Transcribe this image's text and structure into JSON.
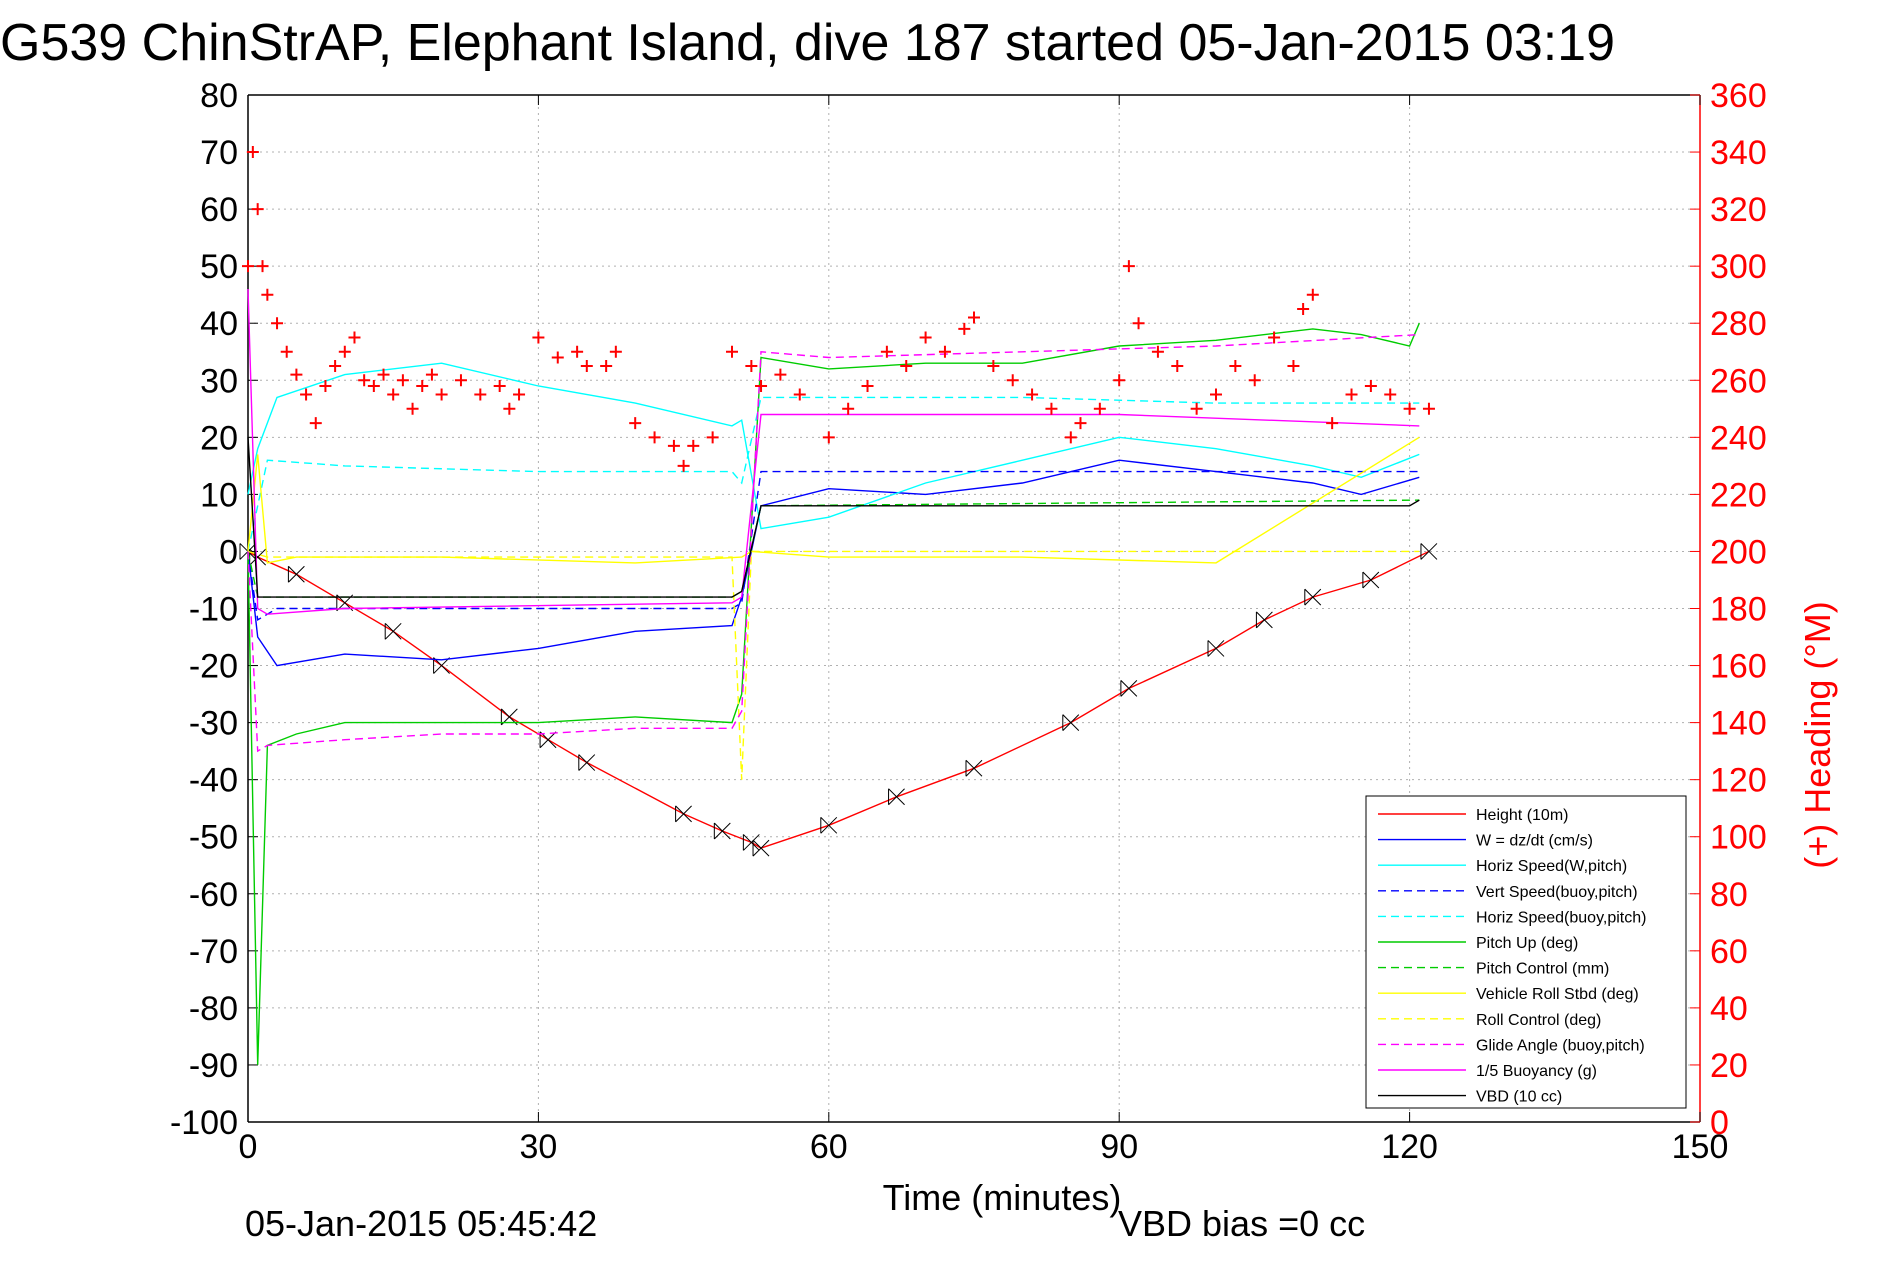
{
  "chart_data": {
    "type": "line",
    "title": "G539 ChinStrAP, Elephant Island, dive 187 started 05-Jan-2015 03:19",
    "xlabel": "Time (minutes)",
    "ylabel": "",
    "y2label": "(+) Heading (°M)",
    "xlim": [
      0,
      150
    ],
    "ylim": [
      -100,
      80
    ],
    "y2lim": [
      0,
      360
    ],
    "x_ticks": [
      "0",
      "30",
      "60",
      "90",
      "120",
      "150"
    ],
    "y_ticks": [
      "80",
      "70",
      "60",
      "50",
      "40",
      "30",
      "20",
      "10",
      "0",
      "-10",
      "-20",
      "-30",
      "-40",
      "-50",
      "-60",
      "-70",
      "-80",
      "-90",
      "-100"
    ],
    "y2_ticks": [
      "360",
      "340",
      "320",
      "300",
      "280",
      "260",
      "240",
      "220",
      "200",
      "180",
      "160",
      "140",
      "120",
      "100",
      "80",
      "60",
      "40",
      "20",
      "0"
    ],
    "grid": true,
    "legend_position": "bottom-right",
    "footer_left": "05-Jan-2015 05:45:42",
    "footer_right": "VBD bias =0 cc",
    "colors": {
      "right_axis": "#ff0000"
    },
    "series": [
      {
        "name": "Height (10m)",
        "color": "#ff0000",
        "style": "solid",
        "x": [
          0,
          1,
          5,
          10,
          15,
          20,
          27,
          31,
          35,
          45,
          49,
          52,
          53,
          60,
          67,
          75,
          85,
          91,
          100,
          105,
          110,
          116,
          122
        ],
        "y": [
          0,
          -1,
          -4,
          -9,
          -14,
          -20,
          -29,
          -33,
          -37,
          -46,
          -49,
          -51,
          -52,
          -48,
          -43,
          -38,
          -30,
          -24,
          -17,
          -12,
          -8,
          -5,
          0
        ]
      },
      {
        "name": "W = dz/dt (cm/s)",
        "color": "#0000ff",
        "style": "solid",
        "x": [
          0,
          1,
          3,
          10,
          20,
          30,
          40,
          50,
          51,
          53,
          60,
          70,
          80,
          90,
          100,
          110,
          115,
          121
        ],
        "y": [
          0,
          -15,
          -20,
          -18,
          -19,
          -17,
          -14,
          -13,
          -8,
          8,
          11,
          10,
          12,
          16,
          14,
          12,
          10,
          13
        ]
      },
      {
        "name": "Horiz Speed(W,pitch)",
        "color": "#00ffff",
        "style": "solid",
        "x": [
          0,
          1,
          3,
          10,
          20,
          30,
          40,
          50,
          51,
          53,
          60,
          70,
          80,
          90,
          100,
          110,
          115,
          121
        ],
        "y": [
          10,
          18,
          27,
          31,
          33,
          29,
          26,
          22,
          23,
          4,
          6,
          12,
          16,
          20,
          18,
          15,
          13,
          17
        ]
      },
      {
        "name": "Vert Speed(buoy,pitch)",
        "color": "#0000ff",
        "style": "dashed",
        "x": [
          0,
          1,
          3,
          50,
          51,
          53,
          121
        ],
        "y": [
          0,
          -12,
          -10,
          -10,
          -9,
          14,
          14
        ]
      },
      {
        "name": "Horiz Speed(buoy,pitch)",
        "color": "#00ffff",
        "style": "dashed",
        "x": [
          0,
          2,
          10,
          30,
          50,
          51,
          53,
          80,
          100,
          121
        ],
        "y": [
          0,
          16,
          15,
          14,
          14,
          12,
          27,
          27,
          26,
          26
        ]
      },
      {
        "name": "Pitch Up (deg)",
        "color": "#00cc00",
        "style": "solid",
        "x": [
          0,
          1,
          2,
          5,
          10,
          20,
          30,
          40,
          50,
          51,
          53,
          60,
          70,
          80,
          90,
          100,
          110,
          115,
          120,
          121
        ],
        "y": [
          0,
          -90,
          -34,
          -32,
          -30,
          -30,
          -30,
          -29,
          -30,
          -25,
          34,
          32,
          33,
          33,
          36,
          37,
          39,
          38,
          36,
          40
        ]
      },
      {
        "name": "Pitch Control (mm)",
        "color": "#00cc00",
        "style": "dashed",
        "x": [
          0,
          1,
          2,
          50,
          51,
          53,
          121
        ],
        "y": [
          0,
          -8,
          -8,
          -8,
          -7,
          8,
          9
        ]
      },
      {
        "name": "Vehicle Roll Stbd (deg)",
        "color": "#ffff00",
        "style": "solid",
        "x": [
          0,
          1,
          2,
          5,
          20,
          40,
          51,
          52,
          60,
          80,
          100,
          121
        ],
        "y": [
          0,
          17,
          -2,
          -1,
          -1,
          -2,
          -1,
          0,
          -1,
          -1,
          -2,
          20
        ]
      },
      {
        "name": "Roll Control (deg)",
        "color": "#ffff00",
        "style": "dashed",
        "x": [
          0,
          2,
          50,
          51,
          52,
          121
        ],
        "y": [
          0,
          -1,
          -1,
          -40,
          0,
          0
        ]
      },
      {
        "name": "Glide Angle (buoy,pitch)",
        "color": "#ff00ff",
        "style": "dashed",
        "x": [
          0,
          1,
          2,
          10,
          20,
          30,
          40,
          50,
          51,
          53,
          60,
          80,
          100,
          121
        ],
        "y": [
          0,
          -35,
          -34,
          -33,
          -32,
          -32,
          -31,
          -31,
          -28,
          35,
          34,
          35,
          36,
          38
        ]
      },
      {
        "name": "1/5 Buoyancy (g)",
        "color": "#ff00ff",
        "style": "solid",
        "x": [
          0,
          1,
          2,
          10,
          50,
          51,
          53,
          90,
          121
        ],
        "y": [
          46,
          -10,
          -11,
          -10,
          -9,
          -8,
          24,
          24,
          22
        ]
      },
      {
        "name": "VBD (10 cc)",
        "color": "#000000",
        "style": "solid",
        "x": [
          0,
          1,
          2,
          50,
          51,
          53,
          120,
          121
        ],
        "y": [
          20,
          -8,
          -8,
          -8,
          -7,
          8,
          8,
          9
        ]
      },
      {
        "name": "",
        "axis": "right",
        "marker": "+",
        "color": "#ff0000",
        "x": [
          0,
          0.5,
          1,
          1.5,
          2,
          3,
          4,
          5,
          6,
          7,
          8,
          9,
          10,
          11,
          12,
          13,
          14,
          15,
          16,
          17,
          18,
          19,
          20,
          22,
          24,
          26,
          27,
          28,
          30,
          32,
          34,
          35,
          37,
          38,
          40,
          42,
          44,
          45,
          46,
          48,
          50,
          52,
          53,
          55,
          57,
          60,
          62,
          64,
          66,
          68,
          70,
          72,
          74,
          75,
          77,
          79,
          81,
          83,
          85,
          86,
          88,
          90,
          91,
          92,
          94,
          96,
          98,
          100,
          102,
          104,
          106,
          108,
          109,
          110,
          112,
          114,
          116,
          118,
          120,
          122
        ],
        "y": [
          300,
          340,
          320,
          300,
          290,
          280,
          270,
          262,
          255,
          245,
          258,
          265,
          270,
          275,
          260,
          258,
          262,
          255,
          260,
          250,
          258,
          262,
          255,
          260,
          255,
          258,
          250,
          255,
          275,
          268,
          270,
          265,
          265,
          270,
          245,
          240,
          237,
          230,
          237,
          240,
          270,
          265,
          258,
          262,
          255,
          240,
          250,
          258,
          270,
          265,
          275,
          270,
          278,
          282,
          265,
          260,
          255,
          250,
          240,
          245,
          250,
          260,
          300,
          280,
          270,
          265,
          250,
          255,
          265,
          260,
          275,
          265,
          285,
          290,
          245,
          255,
          258,
          255,
          250,
          250
        ]
      }
    ]
  }
}
